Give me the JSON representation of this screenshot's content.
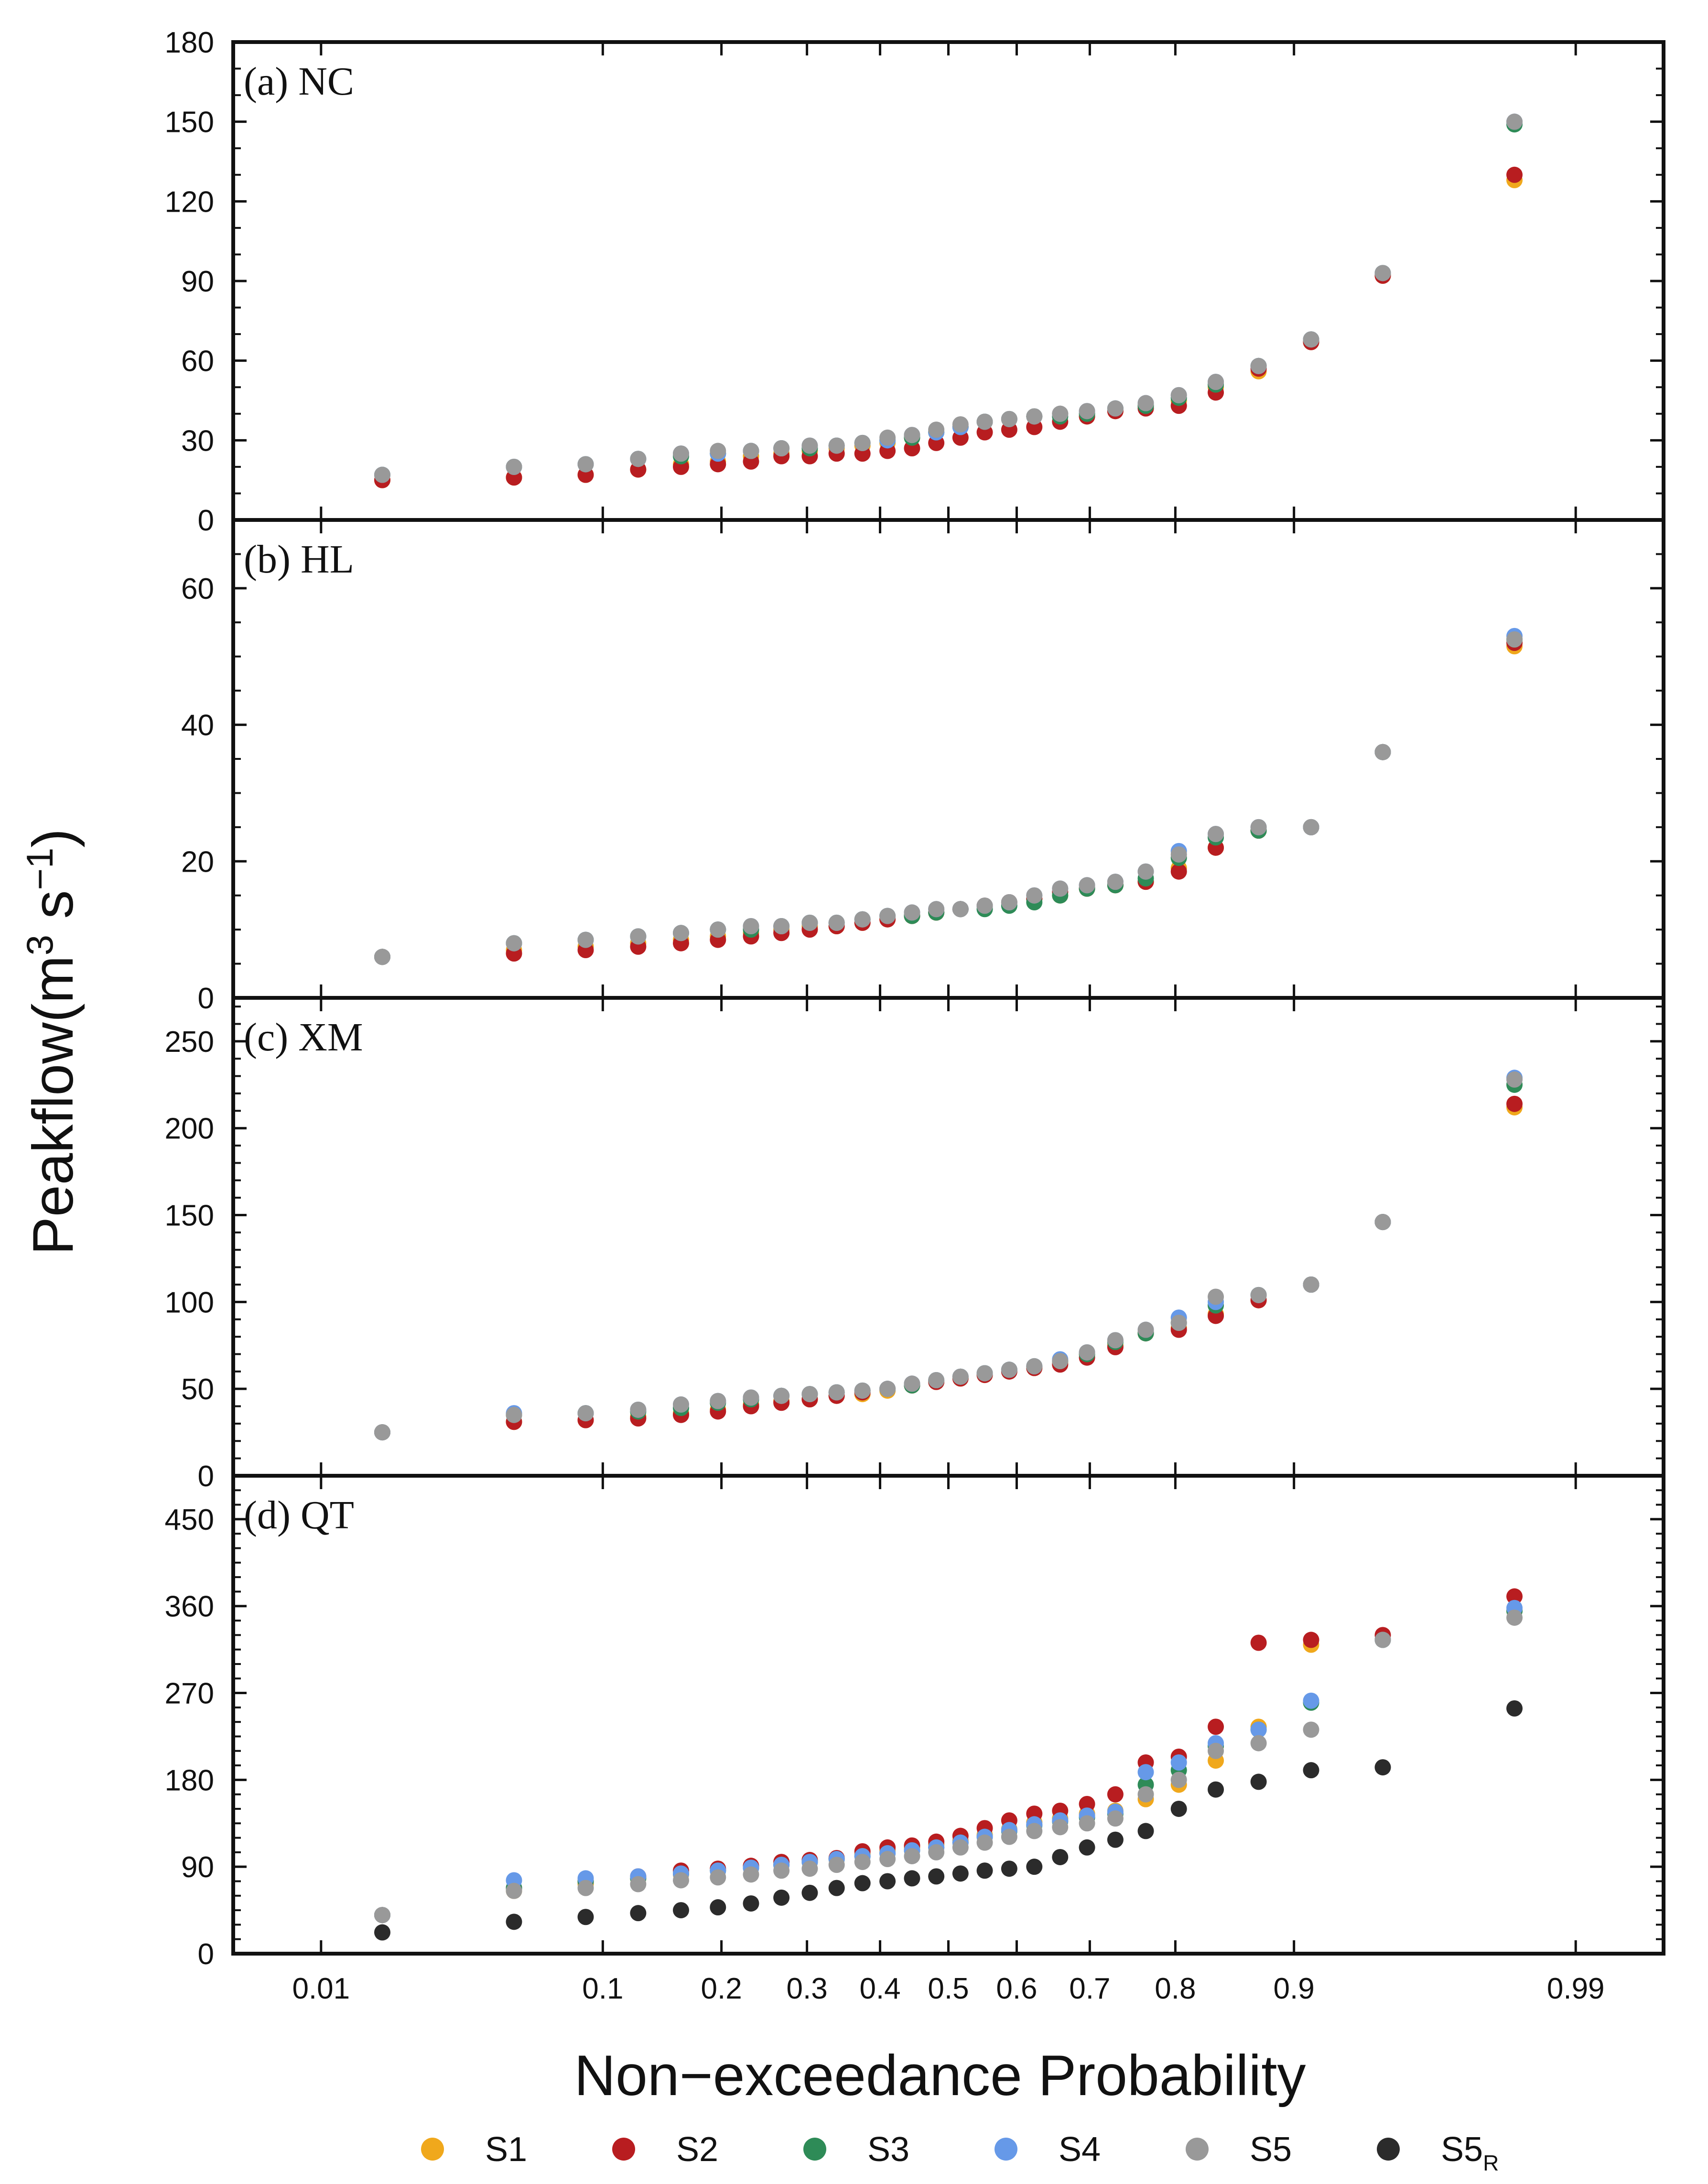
{
  "chart_data": {
    "type": "scatter",
    "x_axis": {
      "label": "Non−exceedance Probability",
      "scale": "normal-probability",
      "tick_labels": [
        "0.01",
        "0.1",
        "0.2",
        "0.3",
        "0.4",
        "0.5",
        "0.6",
        "0.7",
        "0.8",
        "0.9",
        "0.99"
      ],
      "tick_values": [
        0.01,
        0.1,
        0.2,
        0.3,
        0.4,
        0.5,
        0.6,
        0.7,
        0.8,
        0.9,
        0.99
      ],
      "range": [
        0.004,
        0.996
      ]
    },
    "y_axis_label": {
      "main": "Peakflow(m",
      "sup1": "3",
      "mid": " s",
      "sup2": "−1",
      "end": ")"
    },
    "legend": [
      {
        "label": "S1",
        "sub": "",
        "color": "#f0a81c"
      },
      {
        "label": "S2",
        "sub": "",
        "color": "#b81d20"
      },
      {
        "label": "S3",
        "sub": "",
        "color": "#2e8b57"
      },
      {
        "label": "S4",
        "sub": "",
        "color": "#6699e8"
      },
      {
        "label": "S5",
        "sub": "",
        "color": "#999999"
      },
      {
        "label": "S5",
        "sub": "R",
        "color": "#2b2b2b"
      }
    ],
    "panels": [
      {
        "title": "(a) NC",
        "ylim": [
          0,
          180
        ],
        "yticks": [
          0,
          30,
          60,
          90,
          120,
          150,
          180
        ],
        "yminor": 10,
        "probabilities": [
          0.0179,
          0.0536,
          0.0893,
          0.125,
          0.1607,
          0.1964,
          0.2321,
          0.2679,
          0.3036,
          0.3393,
          0.375,
          0.4107,
          0.4464,
          0.4821,
          0.5179,
          0.5536,
          0.5893,
          0.625,
          0.6607,
          0.6964,
          0.7321,
          0.7679,
          0.8036,
          0.8393,
          0.875,
          0.9107,
          0.9464,
          0.9821
        ],
        "series": [
          {
            "name": "S1",
            "values": [
              15,
              16,
              17,
              19,
              21,
              22,
              24,
              25,
              26,
              27,
              28,
              29,
              31,
              33,
              35,
              37,
              38,
              39,
              40,
              39,
              41,
              43,
              45,
              50,
              56,
              67,
              92,
              128
            ]
          },
          {
            "name": "S2",
            "values": [
              15,
              16,
              17,
              19,
              20,
              21,
              22,
              24,
              24,
              25,
              25,
              26,
              27,
              29,
              31,
              33,
              34,
              35,
              37,
              39,
              41,
              42,
              43,
              48,
              57,
              67,
              92,
              130
            ]
          },
          {
            "name": "S3",
            "values": [
              17,
              20,
              21,
              23,
              24,
              25,
              26,
              27,
              27,
              28,
              29,
              30,
              31,
              33,
              35,
              37,
              38,
              39,
              39,
              40,
              42,
              43,
              46,
              51,
              58,
              68,
              93,
              149
            ]
          },
          {
            "name": "S4",
            "values": [
              17,
              20,
              21,
              23,
              25,
              25,
              26,
              27,
              28,
              28,
              29,
              30,
              32,
              33,
              35,
              37,
              38,
              39,
              40,
              41,
              42,
              44,
              47,
              52,
              58,
              68,
              93,
              150
            ]
          },
          {
            "name": "S5",
            "values": [
              17,
              20,
              21,
              23,
              25,
              26,
              26,
              27,
              28,
              28,
              29,
              31,
              32,
              34,
              36,
              37,
              38,
              39,
              40,
              41,
              42,
              44,
              47,
              52,
              58,
              68,
              93,
              150
            ]
          }
        ]
      },
      {
        "title": "(b) HL",
        "ylim": [
          0,
          70
        ],
        "yticks": [
          0,
          20,
          40,
          60
        ],
        "yminor": 5,
        "probabilities": [
          0.0179,
          0.0536,
          0.0893,
          0.125,
          0.1607,
          0.1964,
          0.2321,
          0.2679,
          0.3036,
          0.3393,
          0.375,
          0.4107,
          0.4464,
          0.4821,
          0.5179,
          0.5536,
          0.5893,
          0.625,
          0.6607,
          0.6964,
          0.7321,
          0.7679,
          0.8036,
          0.8393,
          0.875,
          0.9107,
          0.9464,
          0.9821
        ],
        "series": [
          {
            "name": "S1",
            "values": [
              6,
              7,
              7.5,
              8,
              8.5,
              9,
              9.5,
              10,
              10.5,
              10.5,
              11,
              11.5,
              12,
              12.5,
              13,
              13.5,
              14,
              14.5,
              15,
              16,
              16.5,
              17,
              19,
              22,
              24.5,
              25,
              36,
              51.5
            ]
          },
          {
            "name": "S2",
            "values": [
              6,
              6.5,
              7,
              7.5,
              8,
              8.5,
              9,
              9.5,
              10,
              10.5,
              11,
              11.5,
              12,
              12.5,
              13,
              13.5,
              14,
              14.5,
              15.5,
              16,
              16.5,
              17,
              18.5,
              22,
              24.5,
              25,
              36,
              52
            ]
          },
          {
            "name": "S3",
            "values": [
              6,
              8,
              8.5,
              9,
              9.5,
              10,
              10,
              10.5,
              11,
              11,
              11.5,
              12,
              12,
              12.5,
              13,
              13,
              13.5,
              14,
              15,
              16,
              16.5,
              17.5,
              20.5,
              23.5,
              24.5,
              25,
              36,
              52.5
            ]
          },
          {
            "name": "S4",
            "values": [
              6,
              8,
              8.5,
              9,
              9.5,
              10,
              10.5,
              10.5,
              11,
              11,
              11.5,
              12,
              12.5,
              13,
              13,
              13.5,
              14,
              15,
              16,
              16.5,
              17,
              18.5,
              21.5,
              24,
              25,
              25,
              36,
              53
            ]
          },
          {
            "name": "S5",
            "values": [
              6,
              8,
              8.5,
              9,
              9.5,
              10,
              10.5,
              10.5,
              11,
              11,
              11.5,
              12,
              12.5,
              13,
              13,
              13.5,
              14,
              15,
              16,
              16.5,
              17,
              18.5,
              21,
              24,
              25,
              25,
              36,
              52.5
            ]
          }
        ]
      },
      {
        "title": "(c) XM",
        "ylim": [
          0,
          275
        ],
        "yticks": [
          0,
          50,
          100,
          150,
          200,
          250
        ],
        "yminor": 10,
        "probabilities": [
          0.0179,
          0.0536,
          0.0893,
          0.125,
          0.1607,
          0.1964,
          0.2321,
          0.2679,
          0.3036,
          0.3393,
          0.375,
          0.4107,
          0.4464,
          0.4821,
          0.5179,
          0.5536,
          0.5893,
          0.625,
          0.6607,
          0.6964,
          0.7321,
          0.7679,
          0.8036,
          0.8393,
          0.875,
          0.9107,
          0.9464,
          0.9821
        ],
        "series": [
          {
            "name": "S1",
            "values": [
              25,
              31,
              32,
              34,
              36,
              38,
              41,
              43,
              44,
              46,
              47,
              49,
              52,
              54,
              56,
              58,
              60,
              62,
              65,
              70,
              75,
              82,
              85,
              93,
              101,
              110,
              146,
              212
            ]
          },
          {
            "name": "S2",
            "values": [
              25,
              31,
              32,
              33,
              35,
              37,
              40,
              42,
              44,
              46,
              48,
              50,
              52,
              54,
              56,
              58,
              60,
              62,
              64,
              68,
              74,
              82,
              84,
              92,
              101,
              110,
              146,
              214
            ]
          },
          {
            "name": "S3",
            "values": [
              25,
              35,
              36,
              37,
              39,
              42,
              44,
              46,
              47,
              48,
              49,
              50,
              52,
              55,
              57,
              59,
              61,
              63,
              66,
              70,
              77,
              82,
              88,
              98,
              104,
              110,
              146,
              225
            ]
          },
          {
            "name": "S4",
            "values": [
              25,
              36,
              36,
              38,
              41,
              43,
              45,
              46,
              47,
              48,
              49,
              50,
              53,
              55,
              57,
              59,
              61,
              63,
              67,
              71,
              78,
              84,
              91,
              100,
              104,
              110,
              146,
              229
            ]
          },
          {
            "name": "S5",
            "values": [
              25,
              35,
              36,
              38,
              41,
              43,
              45,
              46,
              47,
              48,
              49,
              50,
              53,
              55,
              57,
              59,
              61,
              63,
              66,
              71,
              78,
              84,
              88,
              103,
              104,
              110,
              146,
              228
            ]
          }
        ]
      },
      {
        "title": "(d) QT",
        "ylim": [
          0,
          495
        ],
        "yticks": [
          0,
          90,
          180,
          270,
          360,
          450
        ],
        "yminor": 15,
        "probabilities": [
          0.0179,
          0.0536,
          0.0893,
          0.125,
          0.1607,
          0.1964,
          0.2321,
          0.2679,
          0.3036,
          0.3393,
          0.375,
          0.4107,
          0.4464,
          0.4821,
          0.5179,
          0.5536,
          0.5893,
          0.625,
          0.6607,
          0.6964,
          0.7321,
          0.7679,
          0.8036,
          0.8393,
          0.875,
          0.9107,
          0.9464,
          0.9821
        ],
        "series": [
          {
            "name": "S1",
            "values": [
              40,
              65,
              72,
              78,
              82,
              86,
              89,
              92,
              95,
              98,
              103,
              107,
              110,
              113,
              117,
              123,
              129,
              136,
              140,
              145,
              148,
              160,
              175,
              200,
              235,
              320,
              325,
              355
            ]
          },
          {
            "name": "S2",
            "values": [
              40,
              68,
              75,
              80,
              86,
              88,
              91,
              95,
              97,
              99,
              106,
              110,
              112,
              116,
              122,
              130,
              138,
              145,
              148,
              155,
              165,
              198,
              204,
              235,
              322,
              325,
              330,
              370
            ]
          },
          {
            "name": "S3",
            "values": [
              40,
              68,
              75,
              78,
              83,
              86,
              89,
              92,
              95,
              98,
              101,
              104,
              107,
              110,
              115,
              121,
              127,
              133,
              137,
              141,
              145,
              175,
              190,
              215,
              232,
              260,
              325,
              355
            ]
          },
          {
            "name": "S4",
            "values": [
              40,
              76,
              78,
              80,
              83,
              86,
              89,
              92,
              95,
              98,
              101,
              104,
              107,
              110,
              115,
              121,
              128,
              134,
              138,
              143,
              147,
              188,
              198,
              218,
              232,
              262,
              325,
              358
            ]
          },
          {
            "name": "S5",
            "values": [
              40,
              65,
              68,
              72,
              76,
              79,
              82,
              86,
              88,
              92,
              95,
              98,
              101,
              105,
              110,
              115,
              121,
              127,
              131,
              135,
              140,
              165,
              180,
              210,
              218,
              232,
              325,
              348
            ]
          },
          {
            "name": "S5R",
            "values": [
              22,
              33,
              38,
              42,
              45,
              48,
              52,
              58,
              63,
              68,
              73,
              75,
              78,
              80,
              83,
              86,
              88,
              90,
              100,
              110,
              118,
              127,
              150,
              170,
              178,
              190,
              193,
              254
            ]
          }
        ]
      }
    ]
  }
}
